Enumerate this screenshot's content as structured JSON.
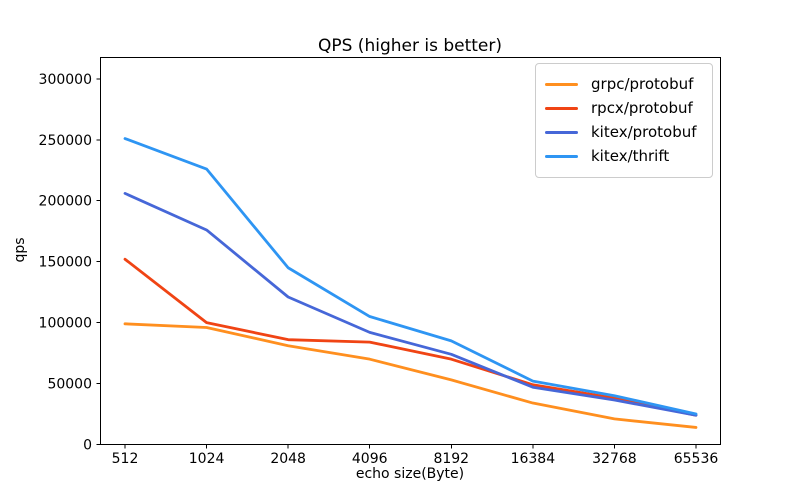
{
  "chart_data": {
    "type": "line",
    "title": "QPS (higher is better)",
    "xlabel": "echo size(Byte)",
    "ylabel": "qps",
    "categories": [
      "512",
      "1024",
      "2048",
      "4096",
      "8192",
      "16384",
      "32768",
      "65536"
    ],
    "x_scale": "log2-categorical",
    "y_ticks": [
      0,
      50000,
      100000,
      150000,
      200000,
      250000,
      300000
    ],
    "ylim": [
      0,
      317500
    ],
    "grid": false,
    "legend_position": "upper right",
    "axis_color": "#000000",
    "series": [
      {
        "name": "grpc/protobuf",
        "color": "#ff8f1f",
        "values": [
          99000,
          96000,
          81000,
          70000,
          53000,
          34000,
          21000,
          14000
        ]
      },
      {
        "name": "rpcx/protobuf",
        "color": "#f04414",
        "values": [
          152000,
          100000,
          86000,
          84000,
          70000,
          49000,
          38000,
          24000
        ]
      },
      {
        "name": "kitex/protobuf",
        "color": "#4667d8",
        "values": [
          206000,
          176000,
          121000,
          92000,
          74000,
          47000,
          36500,
          24000
        ]
      },
      {
        "name": "kitex/thrift",
        "color": "#2e95f3",
        "values": [
          251000,
          226000,
          145000,
          105000,
          85000,
          52000,
          40000,
          25000
        ]
      }
    ]
  }
}
